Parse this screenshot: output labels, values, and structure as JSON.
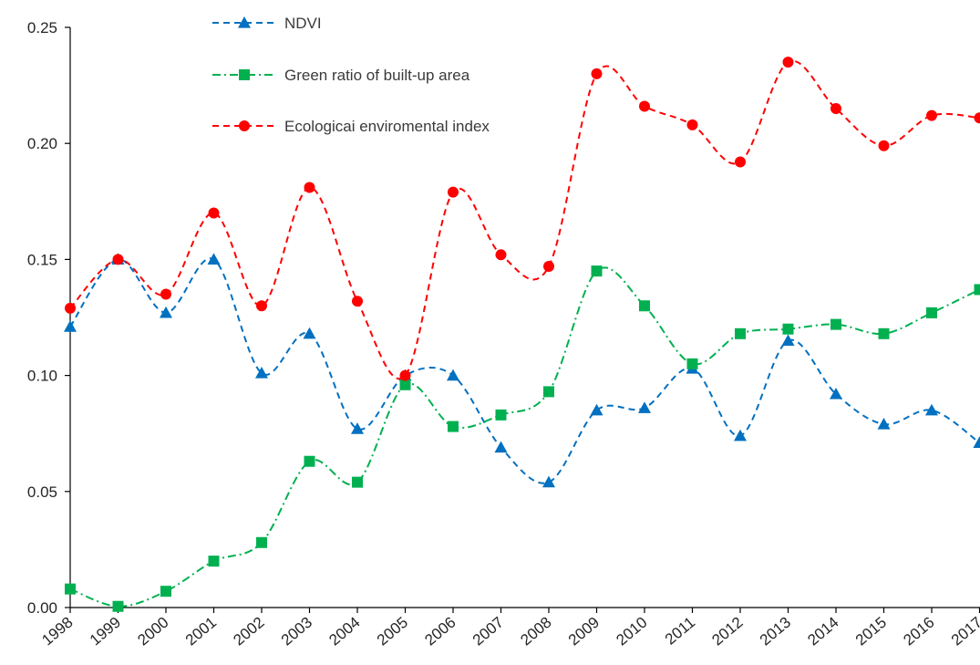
{
  "chart_data": {
    "type": "line",
    "title": "",
    "xlabel": "",
    "ylabel": "",
    "categories": [
      "1998",
      "1999",
      "2000",
      "2001",
      "2002",
      "2003",
      "2004",
      "2005",
      "2006",
      "2007",
      "2008",
      "2009",
      "2010",
      "2011",
      "2012",
      "2013",
      "2014",
      "2015",
      "2016",
      "2017"
    ],
    "ylim": [
      0,
      0.25
    ],
    "yticks": [
      "0.00",
      "0.05",
      "0.10",
      "0.15",
      "0.20",
      "0.25"
    ],
    "grid": false,
    "legend_position": "top-center",
    "series": [
      {
        "name": "NDVI",
        "color": "#0070C0",
        "line_style": "dashed",
        "marker": "triangle",
        "values": [
          0.121,
          0.15,
          0.127,
          0.15,
          0.101,
          0.118,
          0.077,
          0.1,
          0.1,
          0.069,
          0.054,
          0.085,
          0.086,
          0.103,
          0.074,
          0.115,
          0.092,
          0.079,
          0.085,
          0.071
        ]
      },
      {
        "name": "Green ratio of built-up area",
        "color": "#00B050",
        "line_style": "dash-dot",
        "marker": "square",
        "values": [
          0.008,
          0.0005,
          0.007,
          0.02,
          0.028,
          0.063,
          0.054,
          0.096,
          0.078,
          0.083,
          0.093,
          0.145,
          0.13,
          0.105,
          0.118,
          0.12,
          0.122,
          0.118,
          0.127,
          0.137
        ]
      },
      {
        "name": "Ecologicai enviromental index",
        "color": "#FF0000",
        "line_style": "dashed",
        "marker": "circle",
        "values": [
          0.129,
          0.15,
          0.135,
          0.17,
          0.13,
          0.181,
          0.132,
          0.1,
          0.179,
          0.152,
          0.147,
          0.23,
          0.216,
          0.208,
          0.192,
          0.235,
          0.215,
          0.199,
          0.212,
          0.211
        ]
      }
    ]
  }
}
